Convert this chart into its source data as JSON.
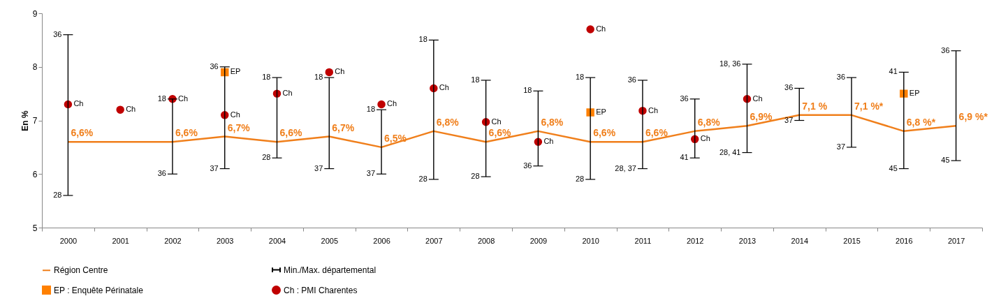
{
  "chart_data": {
    "type": "line",
    "ylabel": "En %",
    "ylim": [
      5,
      9
    ],
    "yticks": [
      5,
      6,
      7,
      8,
      9
    ],
    "grid": false,
    "legend": "bottom",
    "categories": [
      "2000",
      "2001",
      "2002",
      "2003",
      "2004",
      "2005",
      "2006",
      "2007",
      "2008",
      "2009",
      "2010",
      "2011",
      "2012",
      "2013",
      "2014",
      "2015",
      "2016",
      "2017"
    ],
    "series": [
      {
        "name": "Région Centre",
        "color": "#f07f1b",
        "marker": "none",
        "values": [
          6.6,
          6.6,
          6.6,
          6.7,
          6.6,
          6.7,
          6.5,
          6.8,
          6.6,
          6.8,
          6.6,
          6.6,
          6.8,
          6.9,
          7.1,
          7.1,
          6.8,
          6.9
        ],
        "value_labels": [
          "6,6%",
          null,
          "6,6%",
          "6,7%",
          "6,6%",
          "6,7%",
          "6,5%",
          "6,8%",
          "6,6%",
          "6,8%",
          "6,6%",
          "6,6%",
          "6,8%",
          "6,9%",
          "7,1 %",
          "7,1 %*",
          "6,8 %*",
          "6,9 %*"
        ]
      },
      {
        "name": "Min./Max. départemental",
        "type": "bar",
        "color": "#000000",
        "base": [
          5.6,
          null,
          6.0,
          6.1,
          6.3,
          6.1,
          6.0,
          5.9,
          5.95,
          6.15,
          5.9,
          6.1,
          6.3,
          6.4,
          7.0,
          6.5,
          6.1,
          6.25
        ],
        "values": [
          3.0,
          null,
          1.4,
          1.9,
          1.5,
          1.7,
          1.2,
          2.6,
          1.8,
          1.4,
          1.9,
          1.65,
          1.1,
          1.65,
          0.6,
          1.3,
          1.8,
          2.05
        ]
      },
      {
        "name": "EP : Enquête Périnatale",
        "type": "scatter",
        "color": "#ff8000",
        "marker": "square",
        "values": [
          null,
          null,
          null,
          7.9,
          null,
          null,
          null,
          null,
          null,
          null,
          7.15,
          null,
          null,
          null,
          null,
          null,
          7.5,
          null
        ],
        "value_labels": [
          null,
          null,
          null,
          "EP",
          null,
          null,
          null,
          null,
          null,
          null,
          "EP",
          null,
          null,
          null,
          null,
          null,
          "EP",
          null
        ]
      },
      {
        "name": "Ch : PMI Charentes",
        "type": "scatter",
        "color": "#c00000",
        "marker": "circle",
        "values": [
          7.3,
          7.2,
          7.4,
          7.1,
          7.5,
          7.9,
          7.3,
          7.6,
          6.97,
          6.6,
          8.7,
          7.18,
          6.65,
          7.4,
          null,
          null,
          null,
          null
        ],
        "value_labels": [
          "Ch",
          "Ch",
          "Ch",
          "Ch",
          "Ch",
          "Ch",
          "Ch",
          "Ch",
          "Ch",
          "Ch",
          "Ch",
          "Ch",
          "Ch",
          "Ch",
          null,
          null,
          null,
          null
        ]
      }
    ],
    "annotations": [
      {
        "text": "36",
        "x": "2000",
        "y": 8.6
      },
      {
        "text": "28",
        "x": "2000",
        "y": 5.6
      },
      {
        "text": "18",
        "x": "2002",
        "y": 7.4
      },
      {
        "text": "36",
        "x": "2002",
        "y": 6.0
      },
      {
        "text": "36",
        "x": "2003",
        "y": 8.0
      },
      {
        "text": "37",
        "x": "2003",
        "y": 6.1
      },
      {
        "text": "18",
        "x": "2004",
        "y": 7.8
      },
      {
        "text": "28",
        "x": "2004",
        "y": 6.3
      },
      {
        "text": "18",
        "x": "2005",
        "y": 7.8
      },
      {
        "text": "37",
        "x": "2005",
        "y": 6.1
      },
      {
        "text": "18",
        "x": "2006",
        "y": 7.2
      },
      {
        "text": "37",
        "x": "2006",
        "y": 6.0
      },
      {
        "text": "18",
        "x": "2007",
        "y": 8.5
      },
      {
        "text": "28",
        "x": "2007",
        "y": 5.9
      },
      {
        "text": "18",
        "x": "2008",
        "y": 7.75
      },
      {
        "text": "28",
        "x": "2008",
        "y": 5.95
      },
      {
        "text": "18",
        "x": "2009",
        "y": 7.55
      },
      {
        "text": "36",
        "x": "2009",
        "y": 6.15
      },
      {
        "text": "18",
        "x": "2010",
        "y": 7.8
      },
      {
        "text": "28",
        "x": "2010",
        "y": 5.9
      },
      {
        "text": "36",
        "x": "2011",
        "y": 7.75
      },
      {
        "text": "28, 37",
        "x": "2011",
        "y": 6.1
      },
      {
        "text": "36",
        "x": "2012",
        "y": 7.4
      },
      {
        "text": "41",
        "x": "2012",
        "y": 6.3
      },
      {
        "text": "18, 36",
        "x": "2013",
        "y": 8.05
      },
      {
        "text": "28, 41",
        "x": "2013",
        "y": 6.4
      },
      {
        "text": "36",
        "x": "2014",
        "y": 7.6
      },
      {
        "text": "37",
        "x": "2014",
        "y": 7.0
      },
      {
        "text": "36",
        "x": "2015",
        "y": 7.8
      },
      {
        "text": "37",
        "x": "2015",
        "y": 6.5
      },
      {
        "text": "41",
        "x": "2016",
        "y": 7.9
      },
      {
        "text": "45",
        "x": "2016",
        "y": 6.1
      },
      {
        "text": "36",
        "x": "2017",
        "y": 8.3
      },
      {
        "text": "45",
        "x": "2017",
        "y": 6.25
      }
    ]
  }
}
